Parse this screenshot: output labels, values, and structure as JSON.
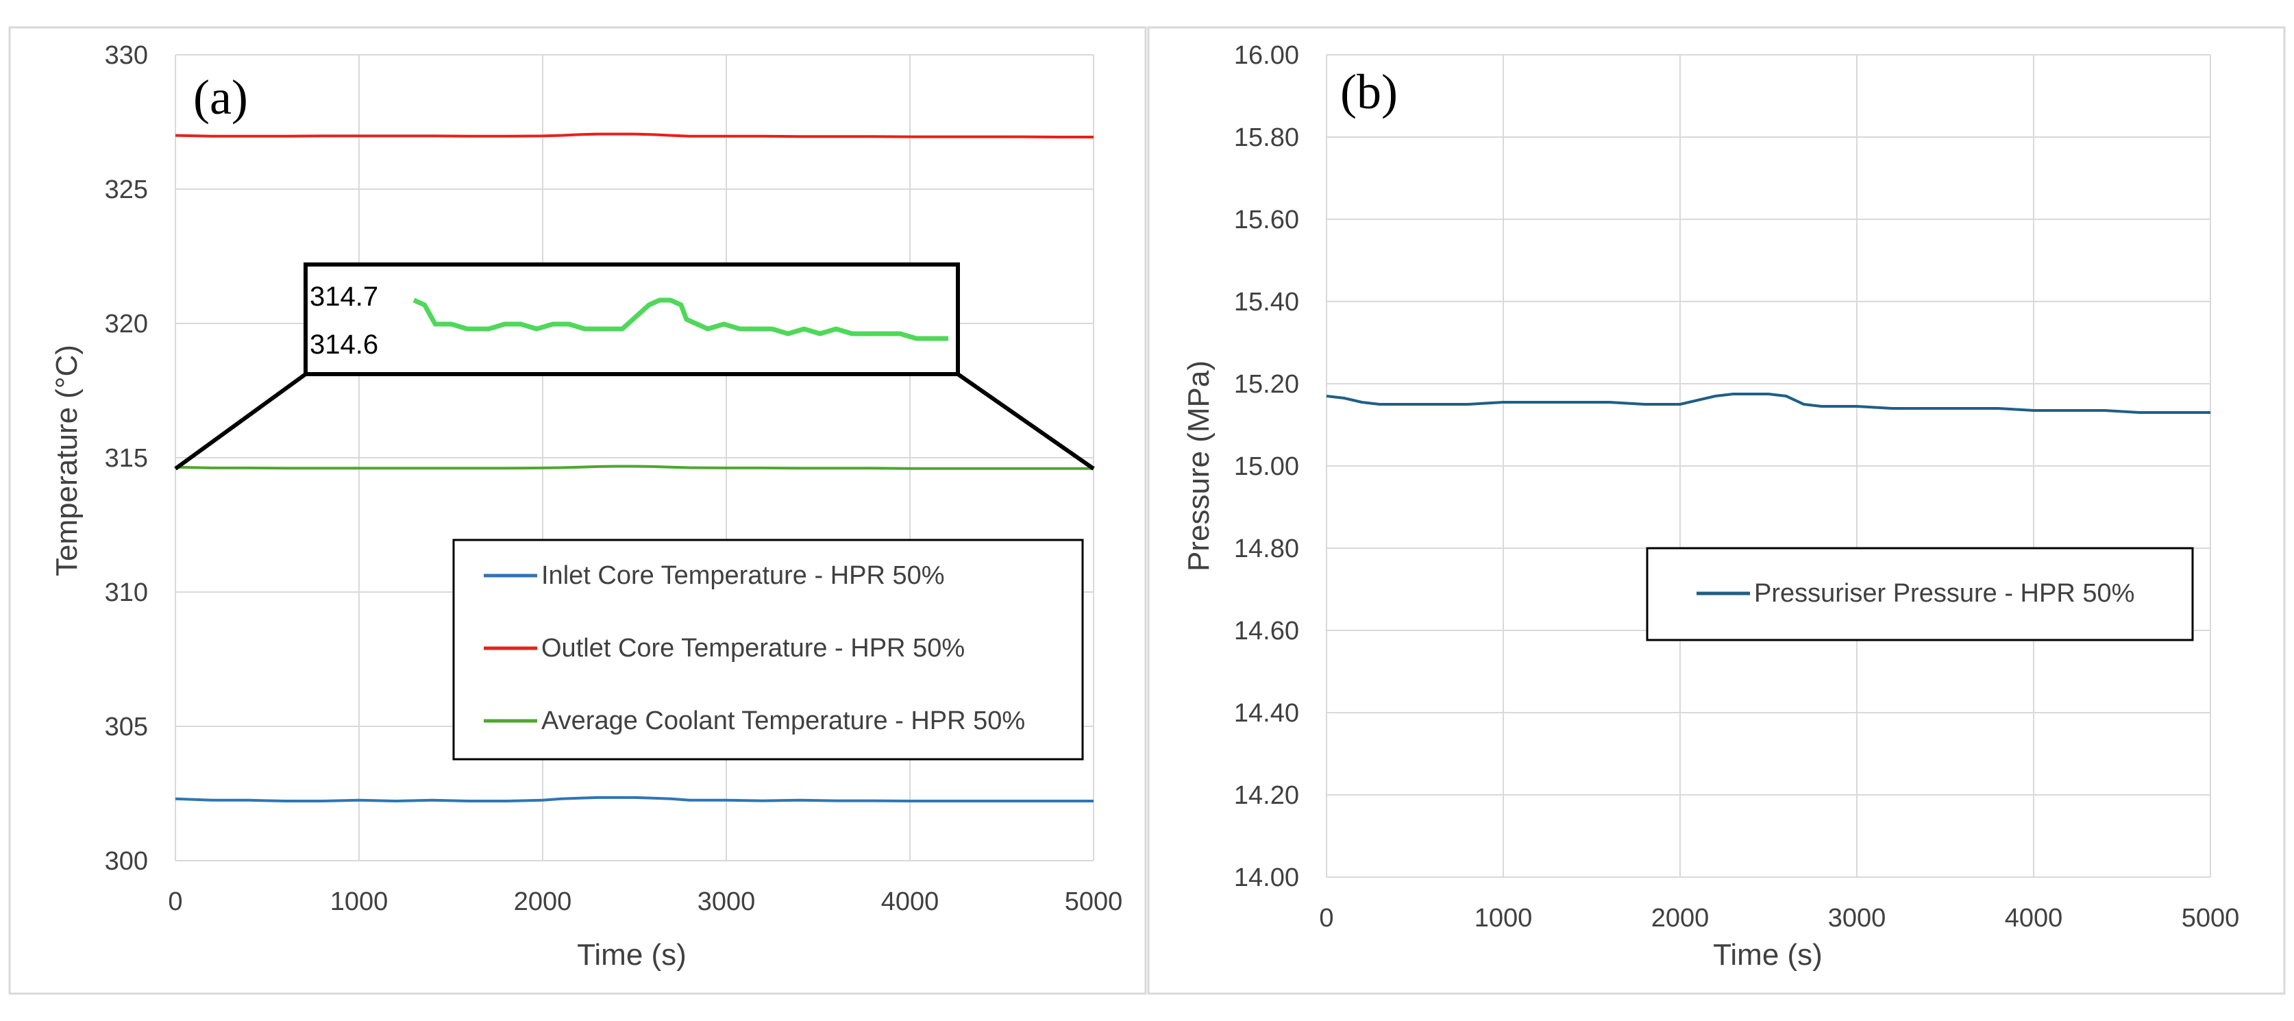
{
  "chart_data": [
    {
      "type": "line",
      "panel_label": "(a)",
      "xlabel": "Time (s)",
      "ylabel": "Temperature (°C)",
      "xlim": [
        0,
        5000
      ],
      "ylim": [
        300,
        330
      ],
      "x_ticks": [
        "0",
        "1000",
        "2000",
        "3000",
        "4000",
        "5000"
      ],
      "y_ticks": [
        "300",
        "305",
        "310",
        "315",
        "320",
        "325",
        "330"
      ],
      "grid": true,
      "legend_position": "lower-right",
      "series": [
        {
          "name": "Inlet Core Temperature - HPR 50%",
          "color": "#2e75b6",
          "x": [
            0,
            200,
            400,
            600,
            800,
            1000,
            1200,
            1400,
            1600,
            1800,
            2000,
            2100,
            2200,
            2300,
            2400,
            2500,
            2600,
            2700,
            2800,
            3000,
            3200,
            3400,
            3600,
            3800,
            4000,
            4200,
            4400,
            4600,
            4800,
            5000
          ],
          "values": [
            302.3,
            302.25,
            302.25,
            302.22,
            302.22,
            302.25,
            302.22,
            302.25,
            302.22,
            302.22,
            302.25,
            302.3,
            302.33,
            302.35,
            302.35,
            302.35,
            302.33,
            302.3,
            302.25,
            302.25,
            302.23,
            302.25,
            302.23,
            302.23,
            302.22,
            302.22,
            302.22,
            302.22,
            302.22,
            302.22
          ]
        },
        {
          "name": "Outlet Core Temperature - HPR 50%",
          "color": "#e8201c",
          "x": [
            0,
            200,
            400,
            600,
            800,
            1000,
            1200,
            1400,
            1600,
            1800,
            2000,
            2100,
            2200,
            2300,
            2400,
            2500,
            2600,
            2700,
            2800,
            3000,
            3200,
            3400,
            3600,
            3800,
            4000,
            4200,
            4400,
            4600,
            4800,
            5000
          ],
          "values": [
            327.0,
            326.97,
            326.97,
            326.97,
            326.98,
            326.98,
            326.98,
            326.98,
            326.97,
            326.97,
            326.98,
            327.0,
            327.03,
            327.05,
            327.05,
            327.05,
            327.03,
            327.0,
            326.97,
            326.97,
            326.97,
            326.96,
            326.96,
            326.96,
            326.95,
            326.95,
            326.95,
            326.95,
            326.94,
            326.94
          ]
        },
        {
          "name": "Average Coolant Temperature - HPR 50%",
          "color": "#4ea72e",
          "x": [
            0,
            200,
            400,
            600,
            800,
            1000,
            1200,
            1400,
            1600,
            1800,
            2000,
            2100,
            2200,
            2300,
            2400,
            2500,
            2600,
            2700,
            2800,
            3000,
            3200,
            3400,
            3600,
            3800,
            4000,
            4200,
            4400,
            4600,
            4800,
            5000
          ],
          "values": [
            314.65,
            314.62,
            314.62,
            314.61,
            314.61,
            314.61,
            314.61,
            314.61,
            314.61,
            314.61,
            314.62,
            314.63,
            314.65,
            314.67,
            314.68,
            314.68,
            314.67,
            314.65,
            314.63,
            314.62,
            314.62,
            314.61,
            314.61,
            314.61,
            314.6,
            314.6,
            314.6,
            314.6,
            314.6,
            314.6
          ]
        }
      ],
      "inset": {
        "y_ticks": [
          "314.7",
          "314.6"
        ],
        "ylim": [
          314.55,
          314.75
        ],
        "color": "#4fd859",
        "x": [
          0,
          100,
          200,
          350,
          500,
          700,
          850,
          1000,
          1150,
          1300,
          1450,
          1600,
          1800,
          1950,
          2100,
          2200,
          2300,
          2400,
          2500,
          2550,
          2650,
          2750,
          2900,
          3050,
          3200,
          3350,
          3500,
          3650,
          3800,
          3950,
          4100,
          4250,
          4400,
          4550,
          4700,
          4850,
          5000
        ],
        "values": [
          314.69,
          314.68,
          314.64,
          314.64,
          314.63,
          314.63,
          314.64,
          314.64,
          314.63,
          314.64,
          314.64,
          314.63,
          314.63,
          314.63,
          314.66,
          314.68,
          314.69,
          314.69,
          314.68,
          314.65,
          314.64,
          314.63,
          314.64,
          314.63,
          314.63,
          314.63,
          314.62,
          314.63,
          314.62,
          314.63,
          314.62,
          314.62,
          314.62,
          314.62,
          314.61,
          314.61,
          314.61
        ]
      }
    },
    {
      "type": "line",
      "panel_label": "(b)",
      "xlabel": "Time (s)",
      "ylabel": "Pressure (MPa)",
      "xlim": [
        0,
        5000
      ],
      "ylim": [
        14.0,
        16.0
      ],
      "x_ticks": [
        "0",
        "1000",
        "2000",
        "3000",
        "4000",
        "5000"
      ],
      "y_ticks": [
        "14.00",
        "14.20",
        "14.40",
        "14.60",
        "14.80",
        "15.00",
        "15.20",
        "15.40",
        "15.60",
        "15.80",
        "16.00"
      ],
      "grid": true,
      "legend_position": "center-right",
      "series": [
        {
          "name": "Pressuriser Pressure - HPR 50%",
          "color": "#1f5f86",
          "x": [
            0,
            100,
            200,
            300,
            400,
            600,
            800,
            1000,
            1200,
            1400,
            1600,
            1800,
            2000,
            2100,
            2200,
            2300,
            2400,
            2500,
            2600,
            2650,
            2700,
            2800,
            3000,
            3200,
            3400,
            3600,
            3800,
            4000,
            4200,
            4400,
            4600,
            4800,
            5000
          ],
          "values": [
            15.17,
            15.165,
            15.155,
            15.15,
            15.15,
            15.15,
            15.15,
            15.155,
            15.155,
            15.155,
            15.155,
            15.15,
            15.15,
            15.16,
            15.17,
            15.175,
            15.175,
            15.175,
            15.17,
            15.16,
            15.15,
            15.145,
            15.145,
            15.14,
            15.14,
            15.14,
            15.14,
            15.135,
            15.135,
            15.135,
            15.13,
            15.13,
            15.13
          ]
        }
      ]
    }
  ]
}
